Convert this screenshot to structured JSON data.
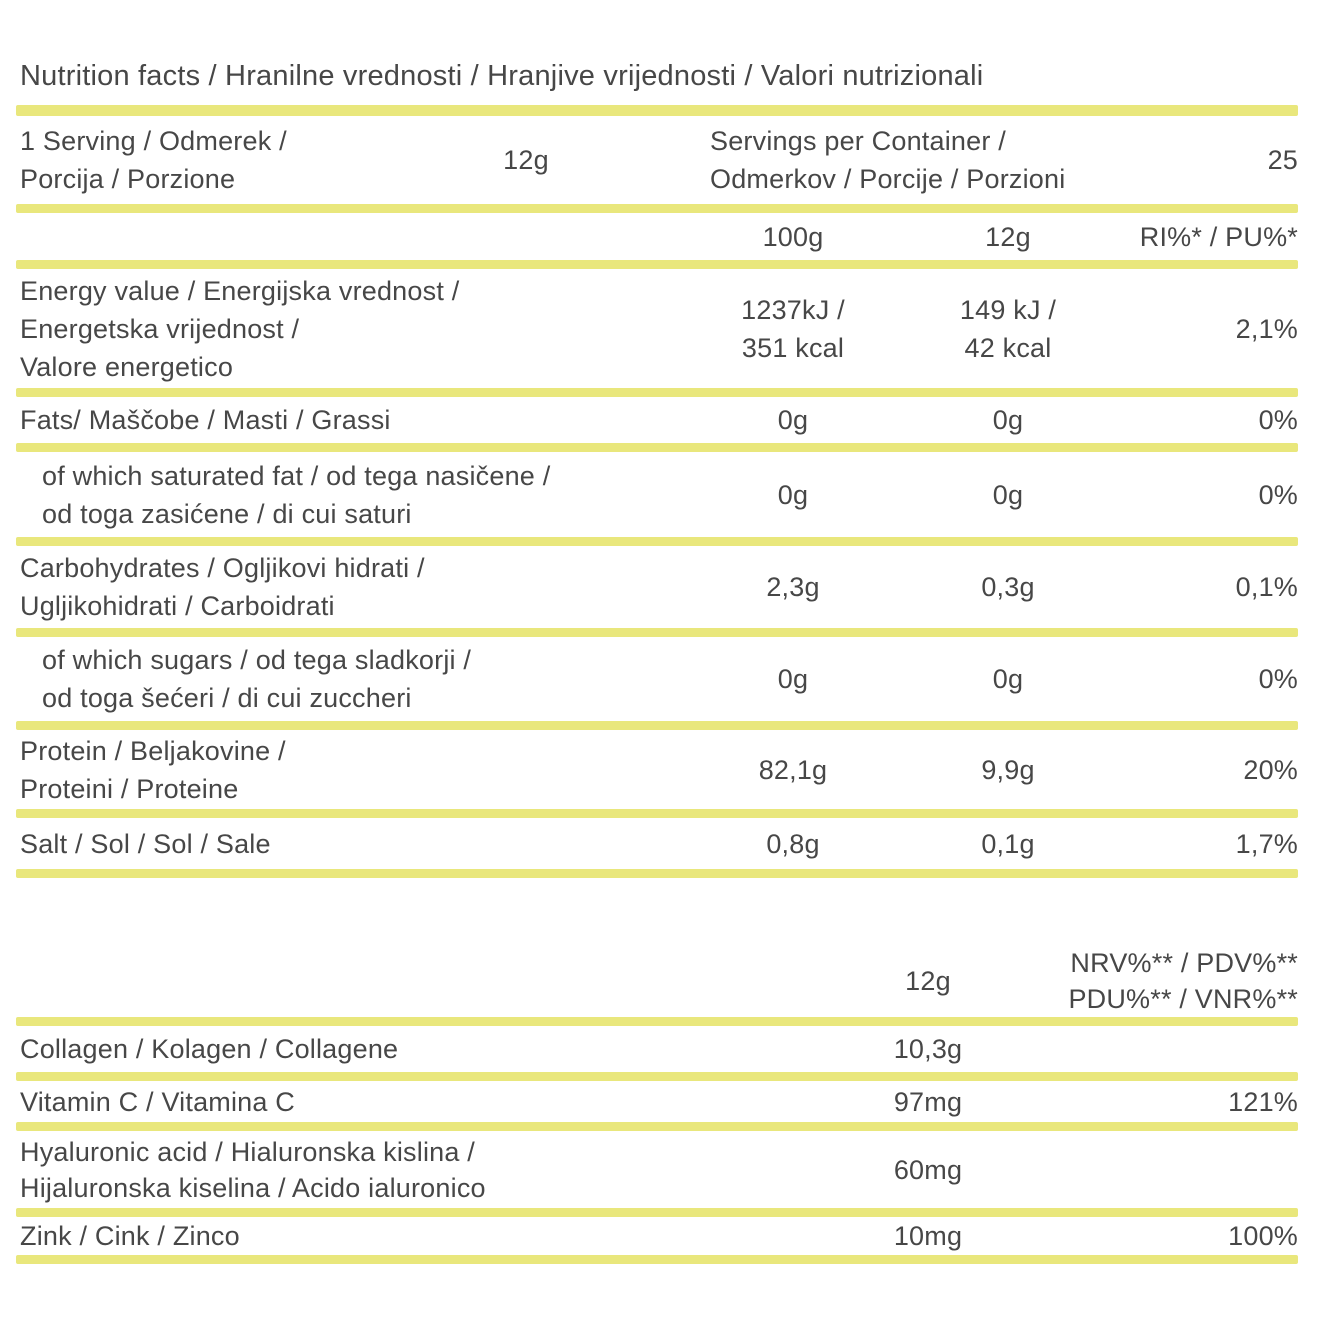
{
  "colors": {
    "accent": "#e9e77c",
    "text": "#474747",
    "background": "#ffffff"
  },
  "title": "Nutrition facts / Hranilne vrednosti / Hranjive vrijednosti / Valori nutrizionali",
  "serving": {
    "label": "1 Serving / Odmerek /\nPorcija / Porzione",
    "amount": "12g",
    "per_container_label": "Servings per Container /\nOdmerkov / Porcije / Porzioni",
    "per_container_value": "25"
  },
  "table1": {
    "col_100g": "100g",
    "col_12g": "12g",
    "col_ri": "RI%* / PU%*",
    "rows": [
      {
        "label": "Energy value / Energijska vrednost /\nEnergetska vrijednost /\nValore energetico",
        "per100g": "1237kJ /\n351 kcal",
        "per12g": "149 kJ /\n42 kcal",
        "ri": "2,1%"
      },
      {
        "label": "Fats/ Maščobe / Masti / Grassi",
        "per100g": "0g",
        "per12g": "0g",
        "ri": "0%"
      },
      {
        "label": "of which saturated fat / od tega nasičene /\nod toga zasićene / di cui saturi",
        "per100g": "0g",
        "per12g": "0g",
        "ri": "0%"
      },
      {
        "label": "Carbohydrates / Ogljikovi hidrati /\nUgljikohidrati / Carboidrati",
        "per100g": "2,3g",
        "per12g": "0,3g",
        "ri": "0,1%"
      },
      {
        "label": "of which sugars / od tega sladkorji /\nod toga šećeri / di cui zuccheri",
        "per100g": "0g",
        "per12g": "0g",
        "ri": "0%"
      },
      {
        "label": "Protein / Beljakovine /\nProteini / Proteine",
        "per100g": "82,1g",
        "per12g": "9,9g",
        "ri": "20%"
      },
      {
        "label": "Salt / Sol / Sol / Sale",
        "per100g": "0,8g",
        "per12g": "0,1g",
        "ri": "1,7%"
      }
    ]
  },
  "table2": {
    "col_12g": "12g",
    "col_nrv": "NRV%** / PDV%**\nPDU%** / VNR%**",
    "rows": [
      {
        "label": "Collagen / Kolagen / Collagene",
        "per12g": "10,3g",
        "nrv": ""
      },
      {
        "label": "Vitamin C / Vitamina C",
        "per12g": "97mg",
        "nrv": "121%"
      },
      {
        "label": "Hyaluronic acid / Hialuronska kislina /\nHijaluronska kiselina / Acido ialuronico",
        "per12g": "60mg",
        "nrv": ""
      },
      {
        "label": "Zink / Cink / Zinco",
        "per12g": "10mg",
        "nrv": "100%"
      }
    ]
  }
}
